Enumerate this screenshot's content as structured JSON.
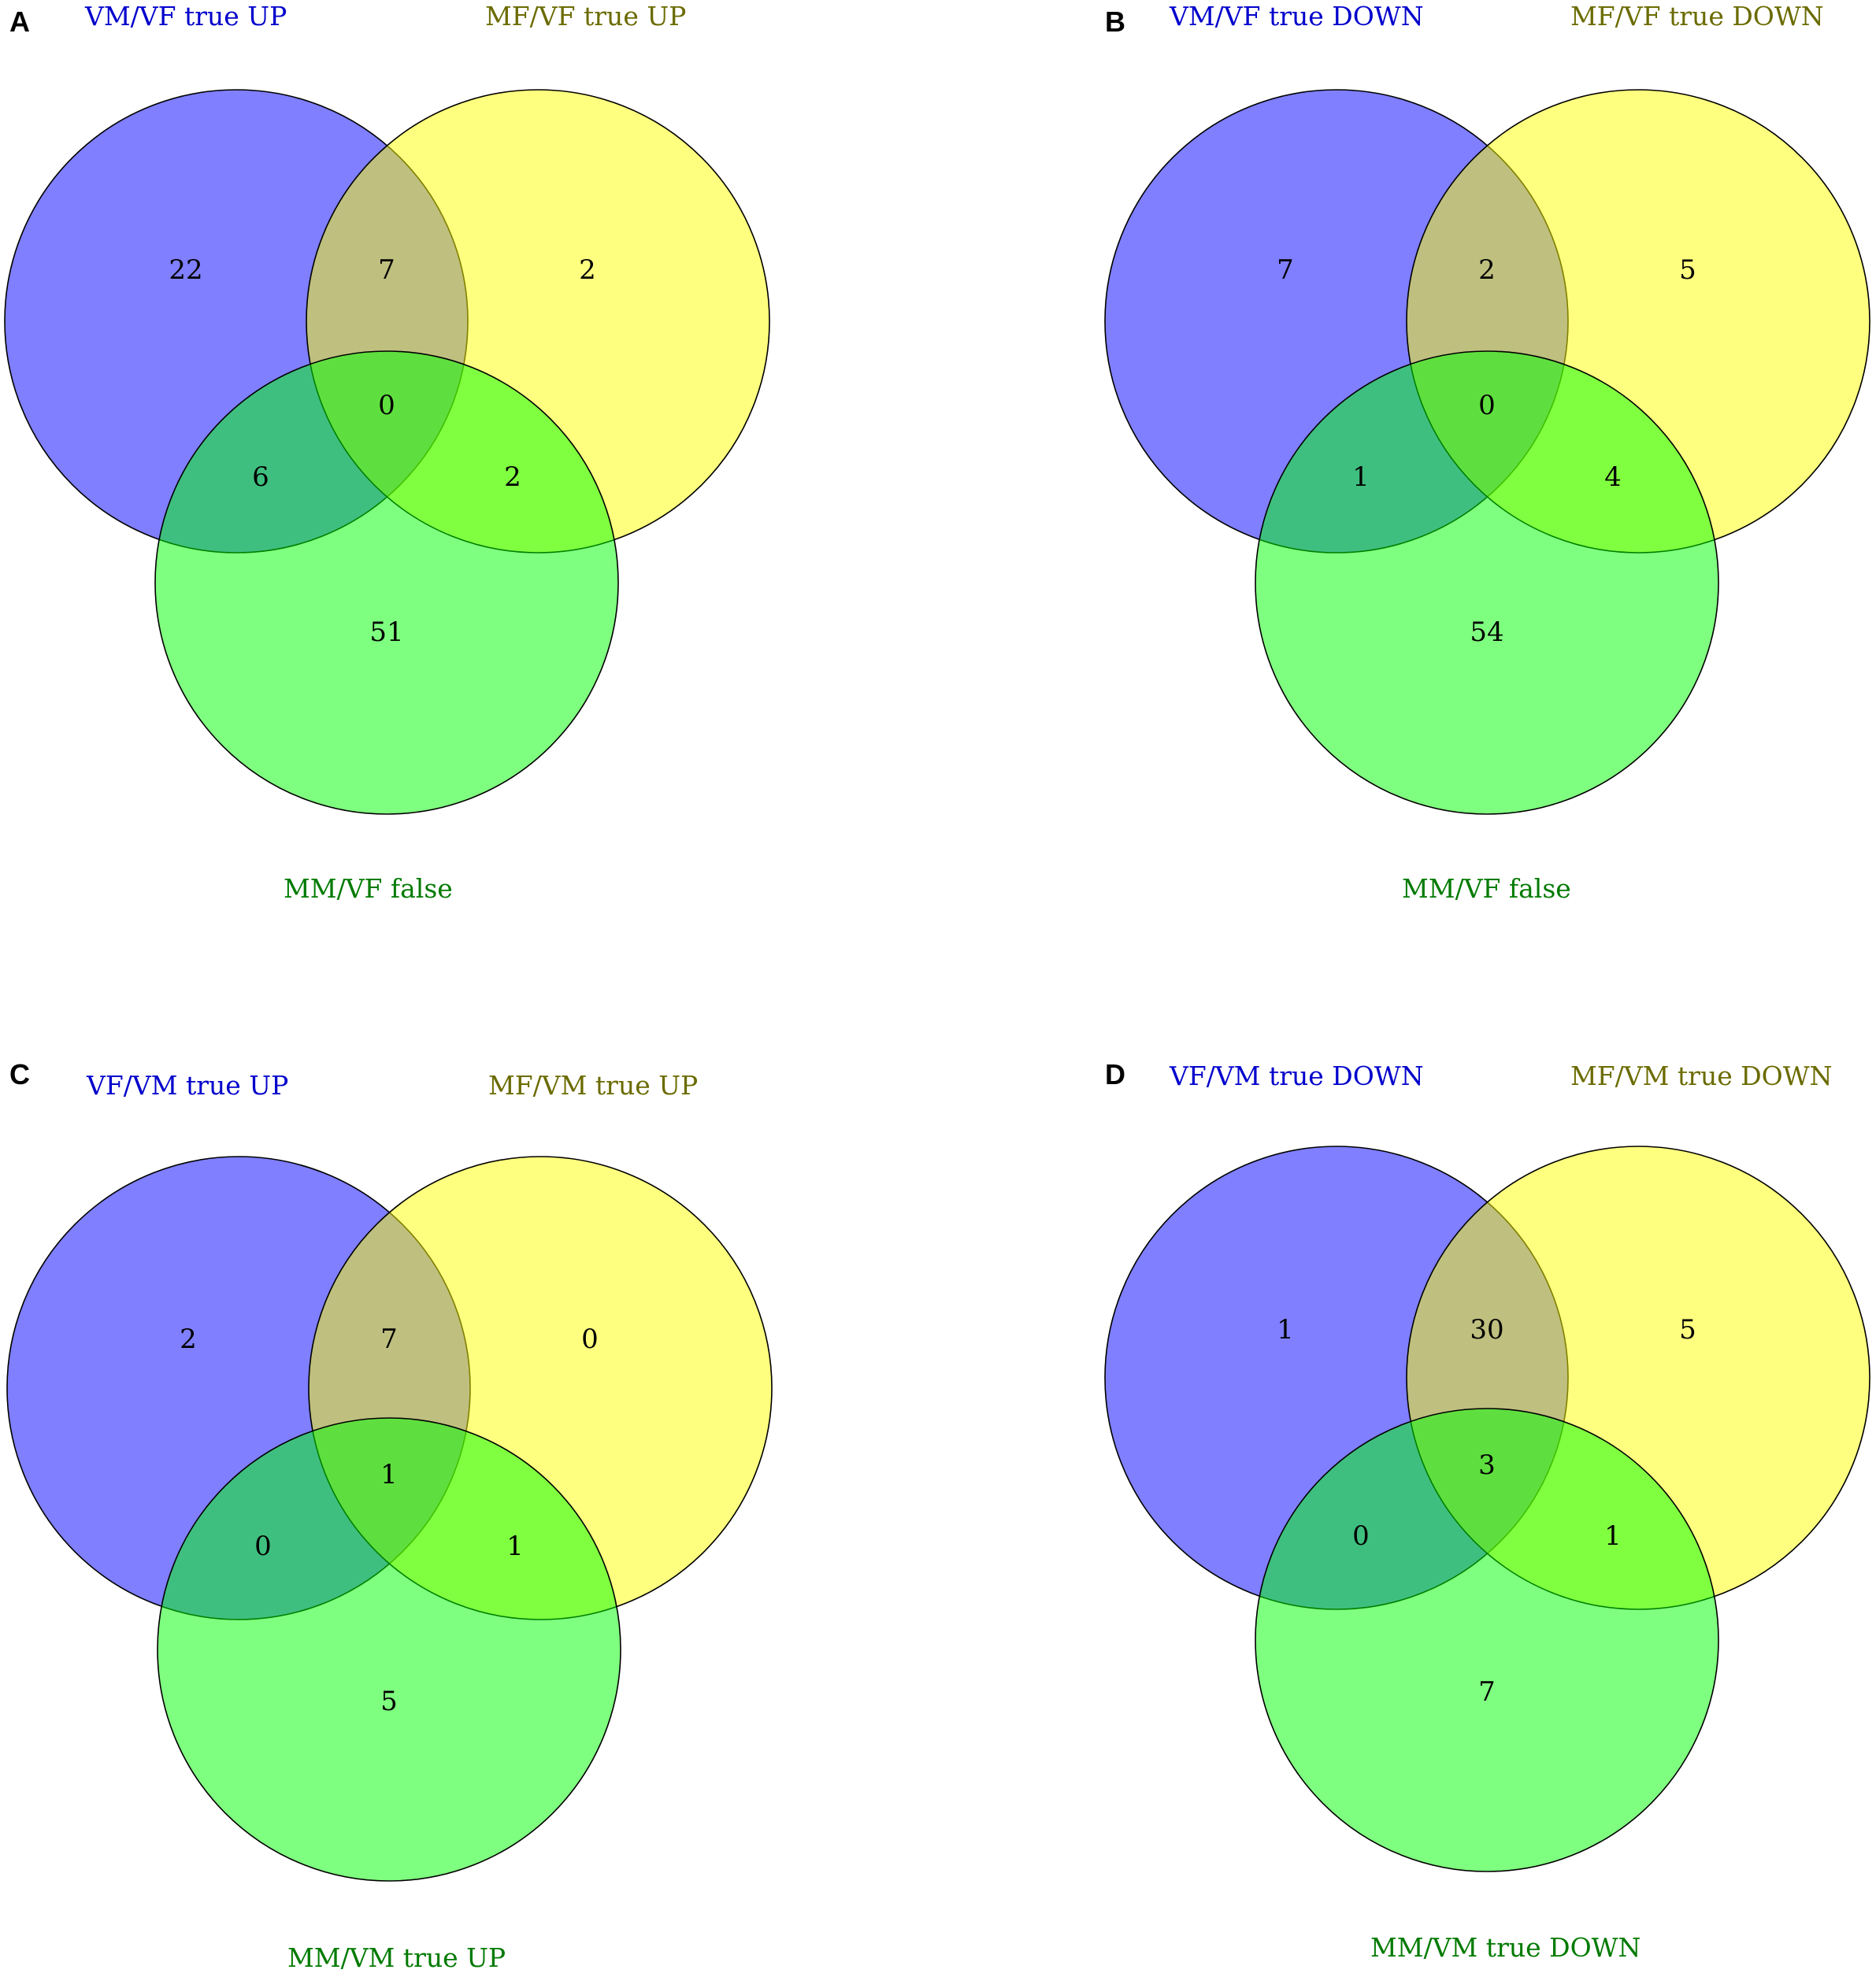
{
  "colors": {
    "set1_fill": "#0000ff",
    "set2_fill": "#ffff00",
    "set3_fill": "#00ff00",
    "set1_label": "#0000cc",
    "set2_label": "#6b6b00",
    "set3_label": "#007a00",
    "fill_opacity": 0.5
  },
  "panels": [
    {
      "letter": "A",
      "labels": {
        "set1": "VM/VF true UP",
        "set2": "MF/VF true UP",
        "set3": "MM/VF false"
      },
      "regions": {
        "only1": "22",
        "only2": "2",
        "only3": "51",
        "r12": "7",
        "r13": "6",
        "r23": "2",
        "r123": "0"
      }
    },
    {
      "letter": "B",
      "labels": {
        "set1": "VM/VF true DOWN",
        "set2": "MF/VF true DOWN",
        "set3": "MM/VF false"
      },
      "regions": {
        "only1": "7",
        "only2": "5",
        "only3": "54",
        "r12": "2",
        "r13": "1",
        "r23": "4",
        "r123": "0"
      }
    },
    {
      "letter": "C",
      "labels": {
        "set1": "VF/VM true UP",
        "set2": "MF/VM true UP",
        "set3": "MM/VM true UP"
      },
      "regions": {
        "only1": "2",
        "only2": "0",
        "only3": "5",
        "r12": "7",
        "r13": "0",
        "r23": "1",
        "r123": "1"
      }
    },
    {
      "letter": "D",
      "labels": {
        "set1": "VF/VM true DOWN",
        "set2": "MF/VM true DOWN",
        "set3": "MM/VM true DOWN"
      },
      "regions": {
        "only1": "1",
        "only2": "5",
        "only3": "7",
        "r12": "30",
        "r13": "0",
        "r23": "1",
        "r123": "3"
      }
    }
  ]
}
